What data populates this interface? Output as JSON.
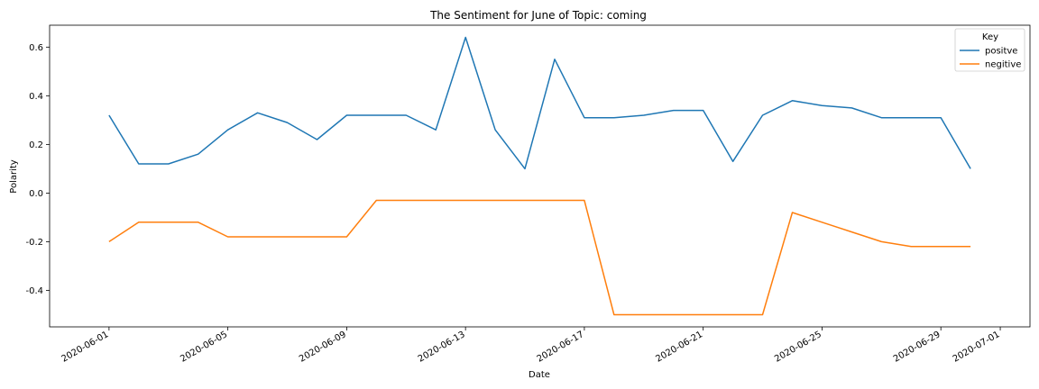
{
  "chart_data": {
    "type": "line",
    "title": "The Sentiment for June of Topic: coming",
    "xlabel": "Date",
    "ylabel": "Polarity",
    "x": [
      "2020-06-01",
      "2020-06-02",
      "2020-06-03",
      "2020-06-04",
      "2020-06-05",
      "2020-06-06",
      "2020-06-07",
      "2020-06-08",
      "2020-06-09",
      "2020-06-10",
      "2020-06-11",
      "2020-06-12",
      "2020-06-13",
      "2020-06-14",
      "2020-06-15",
      "2020-06-16",
      "2020-06-17",
      "2020-06-18",
      "2020-06-19",
      "2020-06-20",
      "2020-06-21",
      "2020-06-22",
      "2020-06-23",
      "2020-06-24",
      "2020-06-25",
      "2020-06-26",
      "2020-06-27",
      "2020-06-28",
      "2020-06-29",
      "2020-06-30"
    ],
    "series": [
      {
        "name": "positve",
        "color": "#1f77b4",
        "values": [
          0.32,
          0.12,
          0.12,
          0.16,
          0.26,
          0.33,
          0.29,
          0.22,
          0.32,
          0.32,
          0.32,
          0.26,
          0.64,
          0.26,
          0.1,
          0.55,
          0.31,
          0.31,
          0.32,
          0.34,
          0.34,
          0.13,
          0.32,
          0.38,
          0.36,
          0.35,
          0.31,
          0.31,
          0.31,
          0.1
        ]
      },
      {
        "name": "negitive",
        "color": "#ff7f0e",
        "values": [
          -0.2,
          -0.12,
          -0.12,
          -0.12,
          -0.18,
          -0.18,
          -0.18,
          -0.18,
          -0.18,
          -0.03,
          -0.03,
          -0.03,
          -0.03,
          -0.03,
          -0.03,
          -0.03,
          -0.03,
          -0.5,
          -0.5,
          -0.5,
          -0.5,
          -0.5,
          -0.5,
          -0.08,
          -0.12,
          -0.16,
          -0.2,
          -0.22,
          -0.22,
          -0.22
        ]
      }
    ],
    "x_ticks": [
      "2020-06-01",
      "2020-06-05",
      "2020-06-09",
      "2020-06-13",
      "2020-06-17",
      "2020-06-21",
      "2020-06-25",
      "2020-06-29",
      "2020-07-01"
    ],
    "y_ticks": [
      "-0.4",
      "-0.2",
      "0.0",
      "0.2",
      "0.4",
      "0.6"
    ],
    "y_tick_values": [
      -0.4,
      -0.2,
      0.0,
      0.2,
      0.4,
      0.6
    ],
    "xlim": [
      "2020-05-30",
      "2020-07-02"
    ],
    "ylim": [
      -0.55,
      0.69
    ],
    "grid": false,
    "legend": {
      "title": "Key",
      "position": "top-right"
    }
  }
}
